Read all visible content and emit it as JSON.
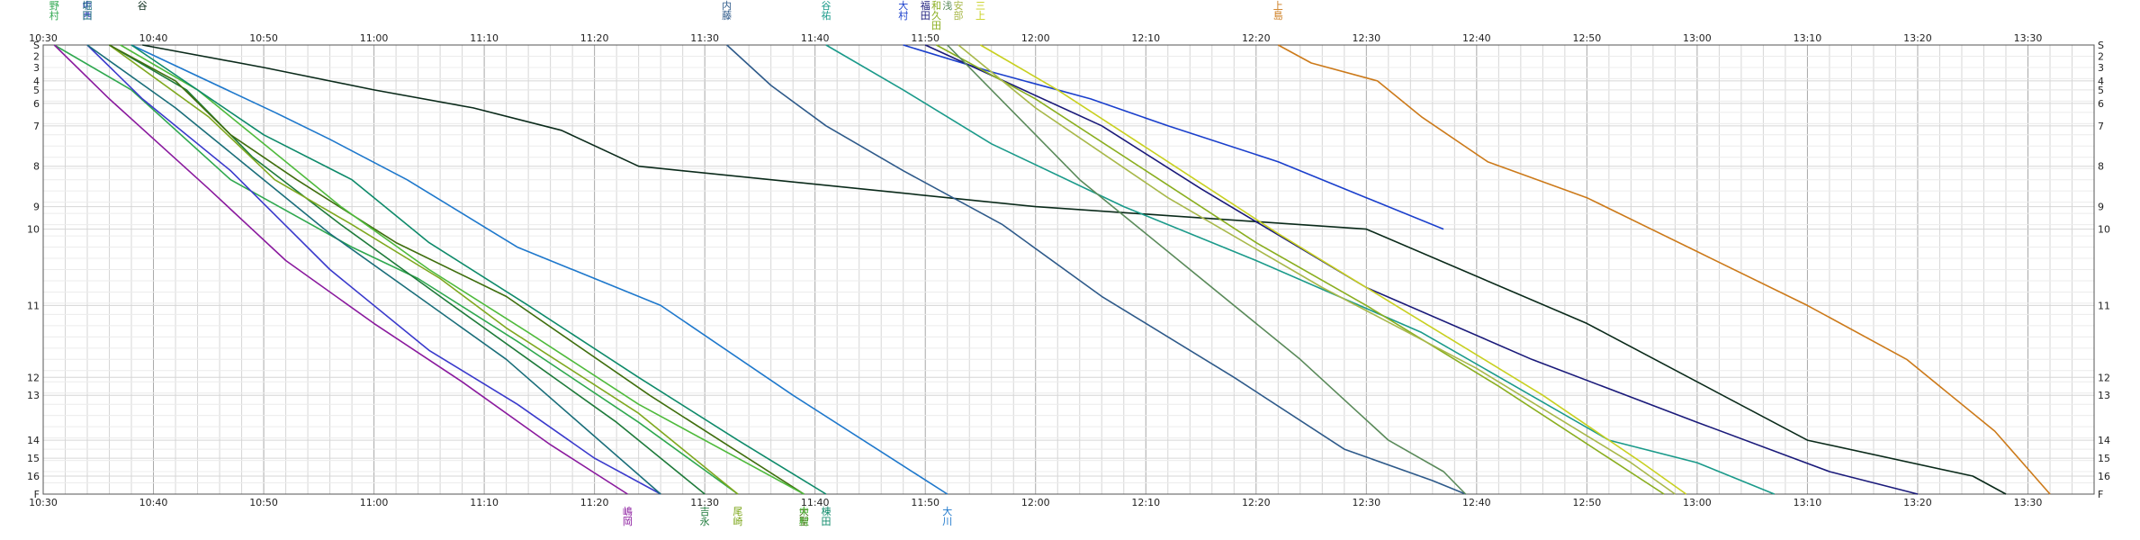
{
  "chart_data": {
    "type": "line",
    "x_tick_labels": [
      "10:30",
      "10:40",
      "10:50",
      "11:00",
      "11:10",
      "11:20",
      "11:30",
      "11:40",
      "11:50",
      "12:00",
      "12:10",
      "12:20",
      "12:30",
      "12:40",
      "12:50",
      "13:00",
      "13:10",
      "13:20",
      "13:30"
    ],
    "xlim": [
      "10:30",
      "13:36"
    ],
    "y_axis": {
      "orientation": "downward",
      "reversed": true,
      "y_tick_labels": [
        "S",
        "2",
        "3",
        "4",
        "5",
        "6",
        "7",
        "8",
        "9",
        "10",
        "11",
        "12",
        "13",
        "14",
        "15",
        "16",
        "F"
      ],
      "ylim": [
        0,
        100
      ]
    },
    "grid": true,
    "series": [
      {
        "name": "野村",
        "color": "#2fa84f",
        "label_position": "top",
        "x": [
          "10:31",
          "10:38",
          "10:47",
          "10:58",
          "11:04",
          "11:13",
          "11:24",
          "11:33"
        ],
        "y": [
          0,
          10,
          30,
          45,
          52,
          66,
          84,
          100
        ]
      },
      {
        "name": "嶋岡",
        "color": "#8a1a9e",
        "label_position": "bottom",
        "x": [
          "10:31",
          "10:36",
          "10:45",
          "10:52",
          "11:00",
          "11:08",
          "11:16",
          "11:23"
        ],
        "y": [
          0,
          12,
          32,
          48,
          62,
          75,
          89,
          100
        ]
      },
      {
        "name": "中西",
        "color": "#3a3acc",
        "label_position": "top",
        "x": [
          "10:34",
          "10:39",
          "10:47",
          "10:56",
          "11:05",
          "11:13",
          "11:20",
          "11:26"
        ],
        "y": [
          0,
          12,
          28,
          50,
          68,
          80,
          92,
          100
        ]
      },
      {
        "name": "堀田",
        "color": "#1a6e7a",
        "label_position": "top",
        "x": [
          "10:34",
          "10:42",
          "10:48",
          "10:56",
          "11:04",
          "11:12",
          "11:19",
          "11:26"
        ],
        "y": [
          0,
          14,
          26,
          42,
          56,
          70,
          85,
          100
        ]
      },
      {
        "name": "吉永",
        "color": "#1e7a3a",
        "label_position": "bottom",
        "x": [
          "10:36",
          "10:43",
          "10:49",
          "10:57",
          "11:06",
          "11:14",
          "11:22",
          "11:30"
        ],
        "y": [
          0,
          10,
          25,
          40,
          56,
          70,
          84,
          100
        ]
      },
      {
        "name": "尾崎",
        "color": "#7fa81f",
        "label_position": "bottom",
        "x": [
          "10:36",
          "10:45",
          "10:51",
          "10:58",
          "11:06",
          "11:12",
          "11:24",
          "11:33"
        ],
        "y": [
          0,
          16,
          30,
          40,
          52,
          63,
          82,
          100
        ]
      },
      {
        "name": "大聖",
        "color": "#3f6e0e",
        "label_position": "bottom",
        "x": [
          "10:36",
          "10:42",
          "10:47",
          "10:53",
          "11:02",
          "11:12",
          "11:25",
          "11:39"
        ],
        "y": [
          0,
          8,
          20,
          30,
          44,
          56,
          78,
          100
        ]
      },
      {
        "name": "中村",
        "color": "#4fba3c",
        "label_position": "bottom",
        "x": [
          "10:37",
          "10:44",
          "10:50",
          "10:57",
          "11:05",
          "11:14",
          "11:24",
          "11:39"
        ],
        "y": [
          0,
          10,
          22,
          36,
          50,
          64,
          80,
          100
        ]
      },
      {
        "name": "大川",
        "color": "#1e78cc",
        "label_position": "bottom",
        "x": [
          "10:38",
          "10:51",
          "10:56",
          "11:03",
          "11:13",
          "11:26",
          "11:38",
          "11:52"
        ],
        "y": [
          0,
          15,
          21,
          30,
          45,
          58,
          78,
          100
        ]
      },
      {
        "name": "棟田",
        "color": "#0e8a6a",
        "label_position": "bottom",
        "x": [
          "10:38",
          "10:44",
          "10:50",
          "10:58",
          "11:05",
          "11:14",
          "11:24",
          "11:33",
          "11:41"
        ],
        "y": [
          0,
          10,
          20,
          30,
          44,
          58,
          74,
          88,
          100
        ]
      },
      {
        "name": "谷",
        "color": "#0a2a1a",
        "label_position": "top",
        "x": [
          "10:39",
          "10:50",
          "11:00",
          "11:09",
          "11:17",
          "11:24",
          "12:00",
          "12:30",
          "12:50",
          "13:10",
          "13:25",
          "13:28"
        ],
        "y": [
          0,
          5,
          10,
          14,
          19,
          27,
          36,
          41,
          62,
          88,
          96,
          100
        ]
      },
      {
        "name": "内藤",
        "color": "#2e5a8a",
        "label_position": "top",
        "x": [
          "11:32",
          "11:36",
          "11:41",
          "11:48",
          "11:57",
          "12:06",
          "12:18",
          "12:28",
          "12:36",
          "12:39"
        ],
        "y": [
          0,
          9,
          18,
          28,
          40,
          56,
          74,
          90,
          97,
          100
        ]
      },
      {
        "name": "谷祐",
        "color": "#1a9a8a",
        "label_position": "top",
        "x": [
          "11:41",
          "11:48",
          "11:56",
          "12:08",
          "12:20",
          "12:35",
          "12:52",
          "13:00",
          "13:07"
        ],
        "y": [
          0,
          10,
          22,
          36,
          48,
          64,
          88,
          93,
          100
        ]
      },
      {
        "name": "大村",
        "color": "#1a3fcc",
        "label_position": "top",
        "x": [
          "11:48",
          "11:56",
          "12:05",
          "12:12",
          "12:22",
          "12:30",
          "12:37"
        ],
        "y": [
          0,
          6,
          12,
          18,
          26,
          34,
          41
        ]
      },
      {
        "name": "福田",
        "color": "#1a1a7a",
        "label_position": "top",
        "x": [
          "11:50",
          "11:58",
          "12:06",
          "12:15",
          "12:30",
          "12:45",
          "13:00",
          "13:12",
          "13:20"
        ],
        "y": [
          0,
          9,
          18,
          32,
          54,
          70,
          84,
          95,
          100
        ]
      },
      {
        "name": "和久田",
        "color": "#8aae1f",
        "label_position": "top",
        "x": [
          "11:51",
          "12:00",
          "12:10",
          "12:20",
          "12:30",
          "12:42",
          "12:52",
          "12:57"
        ],
        "y": [
          0,
          12,
          28,
          44,
          58,
          76,
          92,
          100
        ]
      },
      {
        "name": "浅",
        "color": "#5a8a5a",
        "label_position": "top",
        "x": [
          "11:52",
          "11:58",
          "12:04",
          "12:14",
          "12:24",
          "12:32",
          "12:37",
          "12:39"
        ],
        "y": [
          0,
          15,
          30,
          50,
          70,
          88,
          95,
          100
        ]
      },
      {
        "name": "安部",
        "color": "#a8b84a",
        "label_position": "top",
        "x": [
          "11:53",
          "12:00",
          "12:12",
          "12:26",
          "12:40",
          "12:54",
          "12:58"
        ],
        "y": [
          0,
          14,
          34,
          54,
          72,
          93,
          100
        ]
      },
      {
        "name": "三上",
        "color": "#c8d020",
        "label_position": "top",
        "x": [
          "11:55",
          "12:02",
          "12:12",
          "12:22",
          "12:34",
          "12:46",
          "12:55",
          "12:59"
        ],
        "y": [
          0,
          10,
          26,
          42,
          60,
          78,
          93,
          100
        ]
      },
      {
        "name": "上島",
        "color": "#cc7a1a",
        "label_position": "top",
        "x": [
          "12:22",
          "12:25",
          "12:31",
          "12:35",
          "12:41",
          "12:50",
          "13:00",
          "13:10",
          "13:19",
          "13:27",
          "13:32"
        ],
        "y": [
          0,
          4,
          8,
          16,
          26,
          34,
          46,
          58,
          70,
          86,
          100
        ]
      }
    ]
  }
}
